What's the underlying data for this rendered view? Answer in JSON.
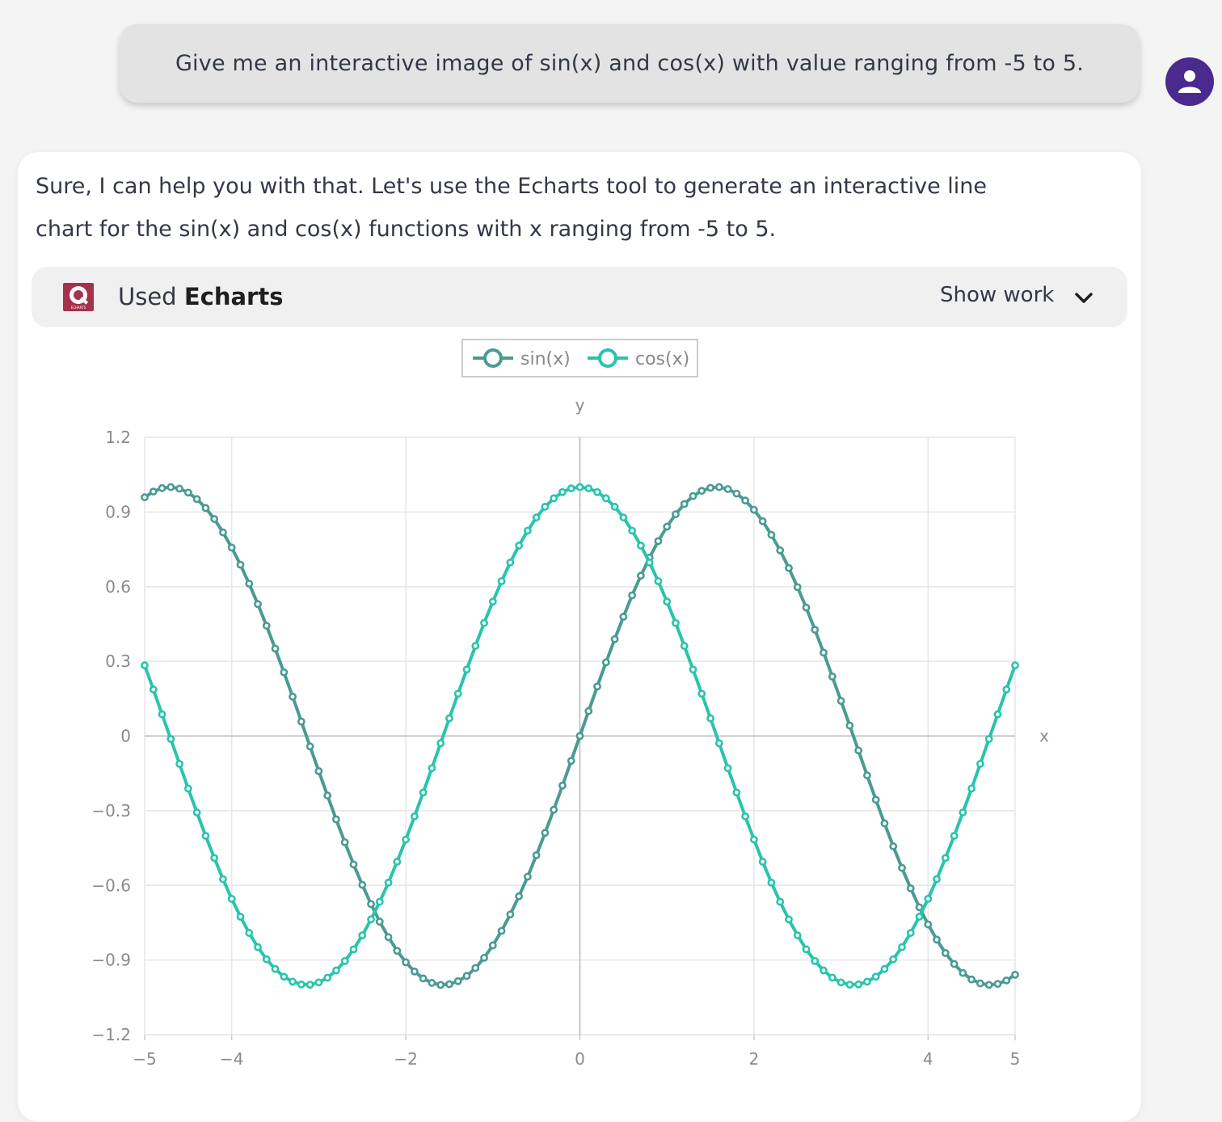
{
  "user_message": {
    "text": "Give me an interactive image of sin(x) and cos(x) with value ranging from -5 to 5."
  },
  "assistant": {
    "line1": "Sure, I can help you with that. Let's use the Echarts tool to generate an interactive line",
    "line2": "chart for the sin(x) and cos(x) functions with x ranging from -5 to 5.",
    "tool": {
      "used_prefix": "Used",
      "tool_name": "Echarts",
      "logo_text": "ECHARTS",
      "show_work_label": "Show work"
    }
  },
  "icons": {
    "avatar": "person-icon",
    "chevron": "chevron-down-icon",
    "tool_logo": "echarts-logo-icon"
  },
  "colors": {
    "avatar_bg": "#4b2a8f",
    "sin": "#4a9b90",
    "cos": "#29c4ac",
    "tool_logo_bg": "#a6314a"
  },
  "chart_data": {
    "type": "line",
    "xlabel": "x",
    "ylabel": "y",
    "xlim": [
      -5,
      5
    ],
    "ylim": [
      -1.2,
      1.2
    ],
    "xticks": [
      -5,
      -4,
      -2,
      0,
      2,
      4,
      5
    ],
    "xtick_labels": [
      "−5",
      "−4",
      "−2",
      "0",
      "2",
      "4",
      "5"
    ],
    "yticks": [
      1.2,
      0.9,
      0.6,
      0.3,
      0,
      -0.3,
      -0.6,
      -0.9,
      -1.2
    ],
    "ytick_labels": [
      "1.2",
      "0.9",
      "0.6",
      "0.3",
      "0",
      "−0.3",
      "−0.6",
      "−0.9",
      "−1.2"
    ],
    "x": [
      -5.0,
      -4.9,
      -4.8,
      -4.7,
      -4.6,
      -4.5,
      -4.4,
      -4.3,
      -4.2,
      -4.1,
      -4.0,
      -3.9,
      -3.8,
      -3.7,
      -3.6,
      -3.5,
      -3.4,
      -3.3,
      -3.2,
      -3.1,
      -3.0,
      -2.9,
      -2.8,
      -2.7,
      -2.6,
      -2.5,
      -2.4,
      -2.3,
      -2.2,
      -2.1,
      -2.0,
      -1.9,
      -1.8,
      -1.7,
      -1.6,
      -1.5,
      -1.4,
      -1.3,
      -1.2,
      -1.1,
      -1.0,
      -0.9,
      -0.8,
      -0.7,
      -0.6,
      -0.5,
      -0.4,
      -0.3,
      -0.2,
      -0.1,
      0.0,
      0.1,
      0.2,
      0.3,
      0.4,
      0.5,
      0.6,
      0.7,
      0.8,
      0.9,
      1.0,
      1.1,
      1.2,
      1.3,
      1.4,
      1.5,
      1.6,
      1.7,
      1.8,
      1.9,
      2.0,
      2.1,
      2.2,
      2.3,
      2.4,
      2.5,
      2.6,
      2.7,
      2.8,
      2.9,
      3.0,
      3.1,
      3.2,
      3.3,
      3.4,
      3.5,
      3.6,
      3.7,
      3.8,
      3.9,
      4.0,
      4.1,
      4.2,
      4.3,
      4.4,
      4.5,
      4.6,
      4.7,
      4.8,
      4.9,
      5.0
    ],
    "series": [
      {
        "name": "sin(x)",
        "color": "#4a9b90",
        "values": [
          0.959,
          0.982,
          0.996,
          1.0,
          0.994,
          0.978,
          0.952,
          0.916,
          0.872,
          0.818,
          0.757,
          0.688,
          0.612,
          0.53,
          0.443,
          0.351,
          0.256,
          0.158,
          0.058,
          -0.042,
          -0.141,
          -0.239,
          -0.335,
          -0.427,
          -0.516,
          -0.598,
          -0.675,
          -0.746,
          -0.808,
          -0.863,
          -0.909,
          -0.946,
          -0.974,
          -0.992,
          -1.0,
          -0.997,
          -0.985,
          -0.964,
          -0.932,
          -0.891,
          -0.841,
          -0.783,
          -0.717,
          -0.644,
          -0.565,
          -0.479,
          -0.389,
          -0.296,
          -0.199,
          -0.1,
          0.0,
          0.1,
          0.199,
          0.296,
          0.389,
          0.479,
          0.565,
          0.644,
          0.717,
          0.783,
          0.841,
          0.891,
          0.932,
          0.964,
          0.985,
          0.997,
          1.0,
          0.992,
          0.974,
          0.946,
          0.909,
          0.863,
          0.808,
          0.746,
          0.675,
          0.598,
          0.516,
          0.427,
          0.335,
          0.239,
          0.141,
          0.042,
          -0.058,
          -0.158,
          -0.256,
          -0.351,
          -0.443,
          -0.53,
          -0.612,
          -0.688,
          -0.757,
          -0.818,
          -0.872,
          -0.916,
          -0.952,
          -0.978,
          -0.994,
          -1.0,
          -0.996,
          -0.982,
          -0.959
        ]
      },
      {
        "name": "cos(x)",
        "color": "#29c4ac",
        "values": [
          0.284,
          0.187,
          0.087,
          -0.012,
          -0.112,
          -0.211,
          -0.307,
          -0.401,
          -0.49,
          -0.575,
          -0.654,
          -0.726,
          -0.791,
          -0.848,
          -0.897,
          -0.936,
          -0.967,
          -0.987,
          -0.998,
          -0.999,
          -0.99,
          -0.971,
          -0.942,
          -0.904,
          -0.857,
          -0.801,
          -0.737,
          -0.666,
          -0.589,
          -0.505,
          -0.416,
          -0.323,
          -0.227,
          -0.129,
          -0.029,
          0.071,
          0.17,
          0.267,
          0.362,
          0.454,
          0.54,
          0.622,
          0.697,
          0.765,
          0.825,
          0.878,
          0.921,
          0.955,
          0.98,
          0.995,
          1.0,
          0.995,
          0.98,
          0.955,
          0.921,
          0.878,
          0.825,
          0.765,
          0.697,
          0.622,
          0.54,
          0.454,
          0.362,
          0.267,
          0.17,
          0.071,
          -0.029,
          -0.129,
          -0.227,
          -0.323,
          -0.416,
          -0.505,
          -0.589,
          -0.666,
          -0.737,
          -0.801,
          -0.857,
          -0.904,
          -0.942,
          -0.971,
          -0.99,
          -0.999,
          -0.998,
          -0.987,
          -0.967,
          -0.936,
          -0.897,
          -0.848,
          -0.791,
          -0.726,
          -0.654,
          -0.575,
          -0.49,
          -0.401,
          -0.307,
          -0.211,
          -0.112,
          -0.012,
          0.087,
          0.187,
          0.284
        ]
      }
    ],
    "legend_position": "top-center",
    "grid": true
  }
}
